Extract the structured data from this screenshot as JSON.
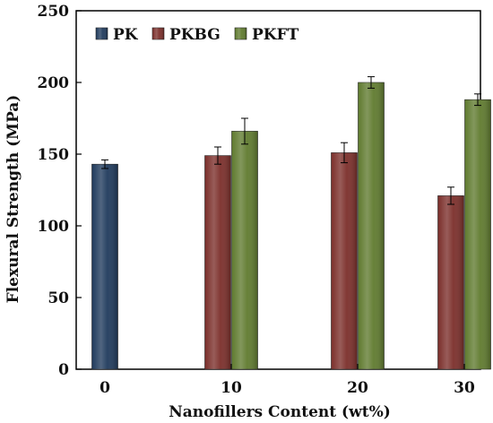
{
  "chart_data": {
    "type": "bar",
    "categories": [
      "0",
      "10",
      "20",
      "30"
    ],
    "series": [
      {
        "name": "PK",
        "color": "#1f3a5c",
        "values": [
          143,
          null,
          null,
          null
        ],
        "errors": [
          3,
          null,
          null,
          null
        ]
      },
      {
        "name": "PKBG",
        "color": "#7b2e2a",
        "values": [
          null,
          149,
          151,
          121
        ],
        "errors": [
          null,
          6,
          7,
          6
        ]
      },
      {
        "name": "PKFT",
        "color": "#5f7a2e",
        "values": [
          null,
          166,
          200,
          188
        ],
        "errors": [
          null,
          9,
          4,
          4
        ]
      }
    ],
    "xlabel": "Nanofillers Content (wt%)",
    "ylabel": "Flexural Strength (MPa)",
    "ylim": [
      0,
      250
    ],
    "yticks": [
      0,
      50,
      100,
      150,
      200,
      250
    ],
    "grid": false,
    "legend_position": "top-left"
  }
}
